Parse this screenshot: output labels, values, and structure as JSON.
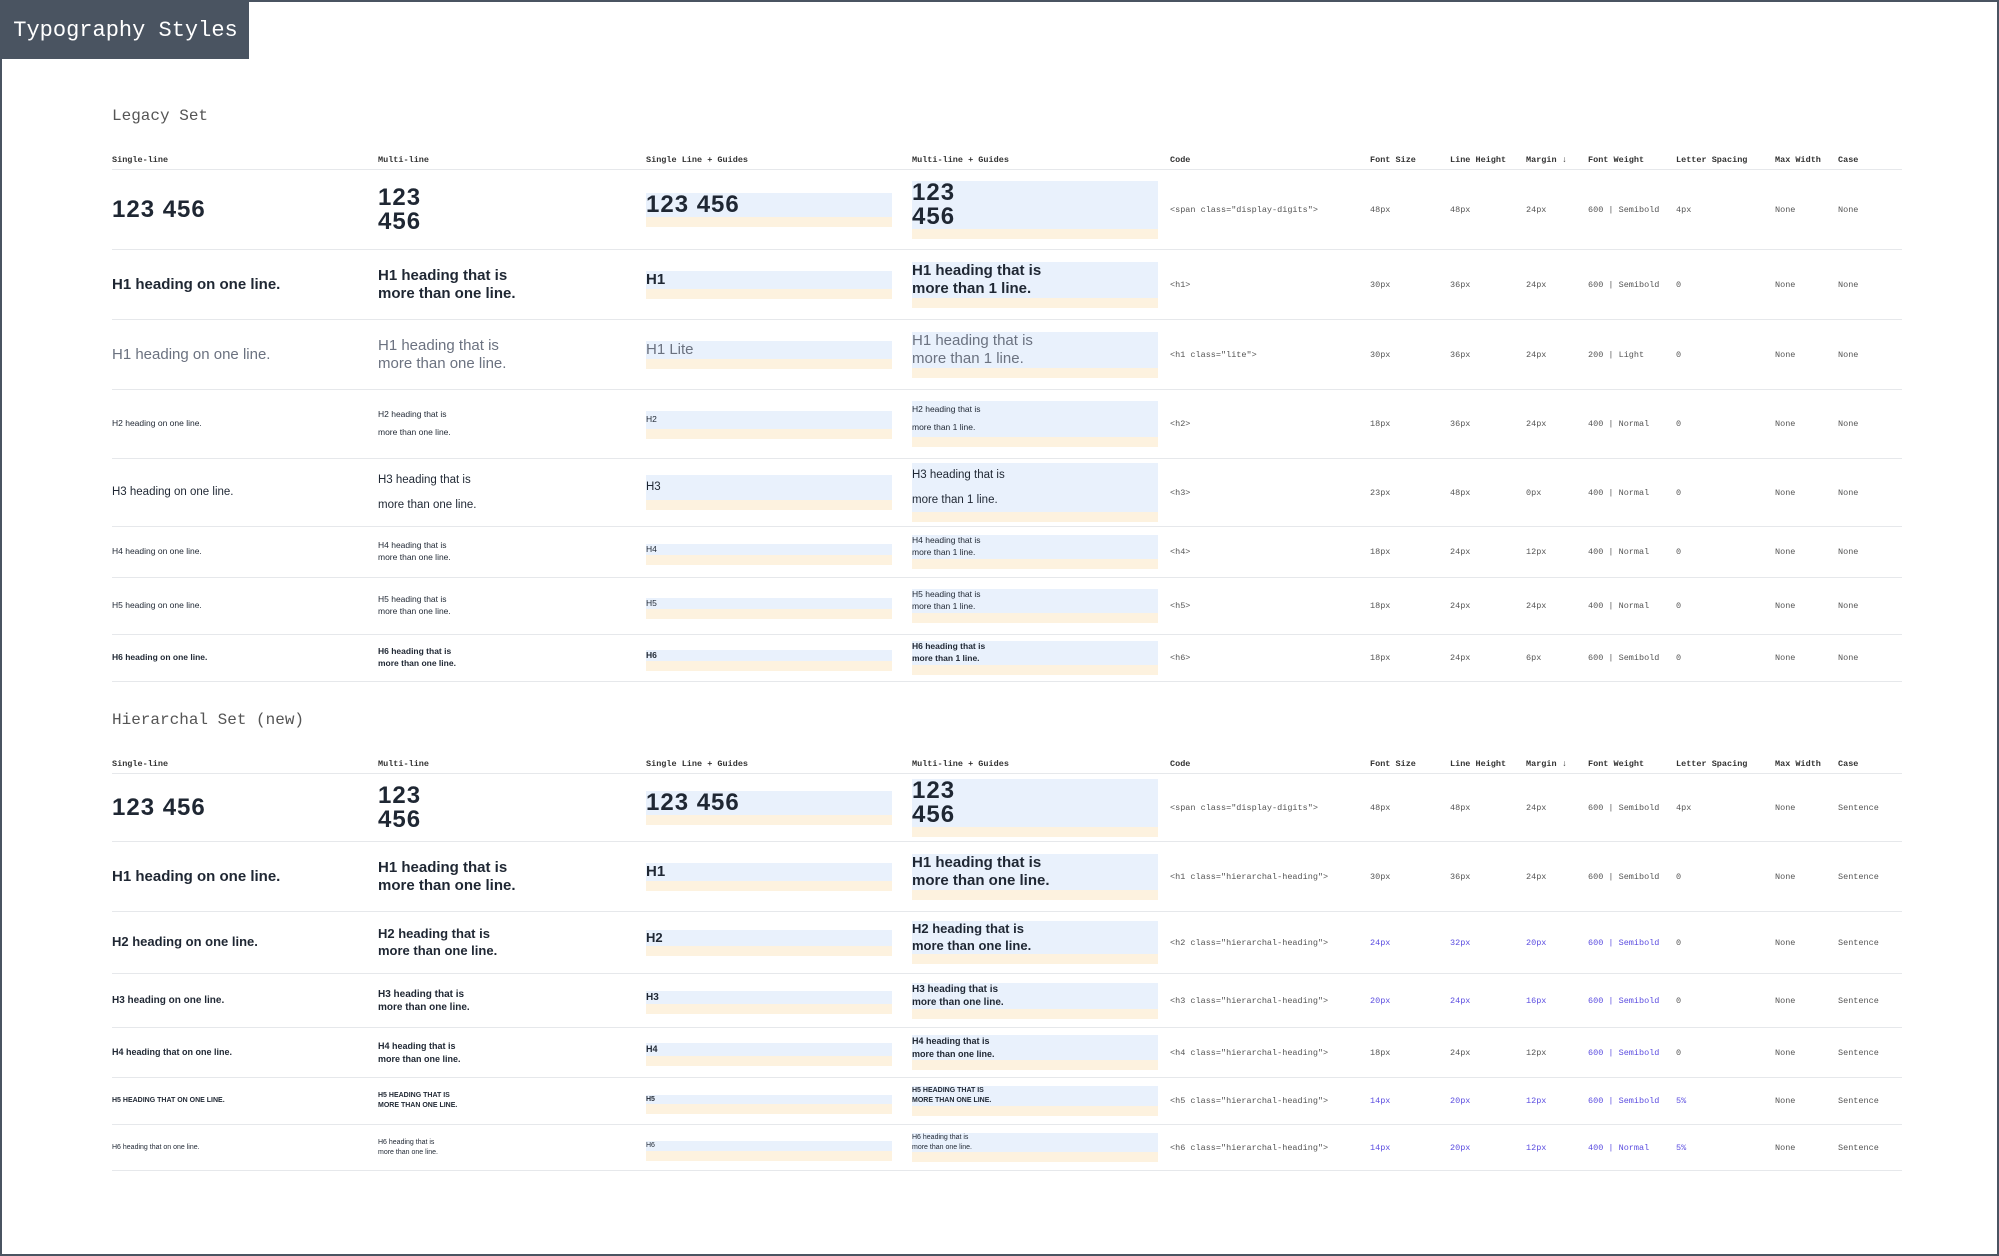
{
  "title": "Typography Styles",
  "sections": [
    {
      "title": "Legacy Set",
      "headers": [
        "Single-line",
        "Multi-line",
        "Single Line + Guides",
        "Multi-line + Guides",
        "Code",
        "Font Size",
        "Line Height",
        "Margin ↓",
        "Font Weight",
        "Letter Spacing",
        "Max Width",
        "Case"
      ],
      "rows": [
        [
          "123 456",
          [
            "123",
            "456"
          ],
          "123 456",
          [
            "123",
            "456"
          ],
          "<span class=\"display-digits\">",
          "48px",
          "48px",
          "24px",
          "600 | Semibold",
          "4px",
          "None",
          "None"
        ],
        [
          "H1 heading on one line.",
          [
            "H1 heading that is",
            "more than one line."
          ],
          "H1",
          [
            "H1 heading that is",
            "more than 1 line."
          ],
          "<h1>",
          "30px",
          "36px",
          "24px",
          "600 | Semibold",
          "0",
          "None",
          "None"
        ],
        [
          "H1 heading on one line.",
          [
            "H1 heading that is",
            "more than one line."
          ],
          "H1 Lite",
          [
            "H1 heading that is",
            "more than 1 line."
          ],
          "<h1 class=\"lite\">",
          "30px",
          "36px",
          "24px",
          "200 | Light",
          "0",
          "None",
          "None"
        ],
        [
          "H2 heading on one line.",
          [
            "H2 heading that is",
            "more than one line."
          ],
          "H2",
          [
            "H2 heading that is",
            "more than 1 line."
          ],
          "<h2>",
          "18px",
          "36px",
          "24px",
          "400 | Normal",
          "0",
          "None",
          "None"
        ],
        [
          "H3 heading on one line.",
          [
            "H3 heading that is",
            "more than one line."
          ],
          "H3",
          [
            "H3 heading that is",
            "more than 1 line."
          ],
          "<h3>",
          "23px",
          "48px",
          "0px",
          "400 | Normal",
          "0",
          "None",
          "None"
        ],
        [
          "H4 heading on one line.",
          [
            "H4 heading that is",
            "more than one line."
          ],
          "H4",
          [
            "H4 heading that is",
            "more than 1 line."
          ],
          "<h4>",
          "18px",
          "24px",
          "12px",
          "400 | Normal",
          "0",
          "None",
          "None"
        ],
        [
          "H5 heading on one line.",
          [
            "H5 heading that is",
            "more than one line."
          ],
          "H5",
          [
            "H5 heading that is",
            "more than 1 line."
          ],
          "<h5>",
          "18px",
          "24px",
          "24px",
          "400 | Normal",
          "0",
          "None",
          "None"
        ],
        [
          "H6 heading on one line.",
          [
            "H6 heading that is",
            "more than one line."
          ],
          "H6",
          [
            "H6 heading that is",
            "more than 1 line."
          ],
          "<h6>",
          "18px",
          "24px",
          "6px",
          "600 | Semibold",
          "0",
          "None",
          "None"
        ]
      ]
    },
    {
      "title": "Hierarchal Set (new)",
      "headers": [
        "Single-line",
        "Multi-line",
        "Single Line + Guides",
        "Multi-line + Guides",
        "Code",
        "Font Size",
        "Line Height",
        "Margin ↓",
        "Font Weight",
        "Letter Spacing",
        "Max Width",
        "Case"
      ],
      "rows": [
        [
          "123 456",
          [
            "123",
            "456"
          ],
          "123 456",
          [
            "123",
            "456"
          ],
          "<span class=\"display-digits\">",
          "48px",
          "48px",
          "24px",
          "600 | Semibold",
          "4px",
          "None",
          "Sentence"
        ],
        [
          "H1 heading on one line.",
          [
            "H1 heading that is",
            "more than one line."
          ],
          "H1",
          [
            "H1 heading that is",
            "more than one line."
          ],
          "<h1 class=\"hierarchal-heading\">",
          "30px",
          "36px",
          "24px",
          "600 | Semibold",
          "0",
          "None",
          "Sentence"
        ],
        [
          "H2 heading on one line.",
          [
            "H2 heading that is",
            "more than one line."
          ],
          "H2",
          [
            "H2 heading that is",
            "more than one line."
          ],
          "<h2 class=\"hierarchal-heading\">",
          "24px",
          "32px",
          "20px",
          "600 | Semibold",
          "0",
          "None",
          "Sentence"
        ],
        [
          "H3 heading on one line.",
          [
            "H3 heading that is",
            "more than one line."
          ],
          "H3",
          [
            "H3 heading that is",
            "more than one line."
          ],
          "<h3 class=\"hierarchal-heading\">",
          "20px",
          "24px",
          "16px",
          "600 | Semibold",
          "0",
          "None",
          "Sentence"
        ],
        [
          "H4 heading that on one line.",
          [
            "H4 heading that is",
            "more than one line."
          ],
          "H4",
          [
            "H4 heading that is",
            "more than one line."
          ],
          "<h4 class=\"hierarchal-heading\">",
          "18px",
          "24px",
          "12px",
          "600 | Semibold",
          "0",
          "None",
          "Sentence"
        ],
        [
          "H5 HEADING THAT ON ONE LINE.",
          [
            "H5 HEADING THAT IS",
            "MORE THAN ONE LINE."
          ],
          "H5",
          [
            "H5 HEADING THAT IS",
            "MORE THAN ONE LINE."
          ],
          "<h5 class=\"hierarchal-heading\">",
          "14px",
          "20px",
          "12px",
          "600 | Semibold",
          "5%",
          "None",
          "Sentence"
        ],
        [
          "H6 heading that on one line.",
          [
            "H6 heading that is",
            "more than one line."
          ],
          "H6",
          [
            "H6 heading that is",
            "more than one line."
          ],
          "<h6 class=\"hierarchal-heading\">",
          "14px",
          "20px",
          "12px",
          "400 | Normal",
          "5%",
          "None",
          "Sentence"
        ]
      ]
    }
  ]
}
